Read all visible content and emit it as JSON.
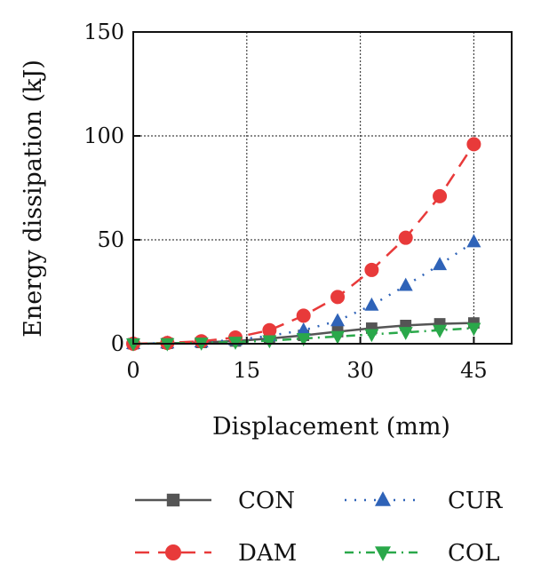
{
  "chart_data": {
    "type": "line",
    "xlabel": "Displacement (mm)",
    "ylabel": "Energy dissipation (kJ)",
    "xlim": [
      0,
      50
    ],
    "ylim": [
      0,
      150
    ],
    "xticks": [
      "0",
      "15",
      "30",
      "45"
    ],
    "yticks": [
      "0",
      "50",
      "100",
      "150"
    ],
    "grid": true,
    "legend_position": "bottom",
    "series": [
      {
        "name": "CON",
        "color": "#555555",
        "marker": "square",
        "line_style": "solid",
        "x": [
          0,
          4.5,
          9,
          13.5,
          18,
          22.5,
          27,
          31.5,
          36,
          40.5,
          45
        ],
        "y": [
          0,
          0.2,
          0.6,
          1.3,
          2.5,
          4.0,
          5.8,
          7.5,
          8.8,
          9.6,
          10.0
        ]
      },
      {
        "name": "CUR",
        "color": "#2f63b8",
        "marker": "triangle-up",
        "line_style": "dotted",
        "x": [
          0,
          4.5,
          9,
          13.5,
          18,
          22.5,
          27,
          31.5,
          36,
          40.5,
          45
        ],
        "y": [
          0,
          0.3,
          0.8,
          1.8,
          3.8,
          6.5,
          11.0,
          18.5,
          28.0,
          38.0,
          49.0
        ]
      },
      {
        "name": "DAM",
        "color": "#e83a3a",
        "marker": "circle",
        "line_style": "dashed",
        "x": [
          0,
          4.5,
          9,
          13.5,
          18,
          22.5,
          27,
          31.5,
          36,
          40.5,
          45
        ],
        "y": [
          0,
          0.4,
          1.2,
          3.0,
          6.5,
          13.5,
          22.5,
          35.5,
          51.0,
          71.0,
          96.0
        ]
      },
      {
        "name": "COL",
        "color": "#2aa84a",
        "marker": "triangle-down",
        "line_style": "dashdot",
        "x": [
          0,
          4.5,
          9,
          13.5,
          18,
          22.5,
          27,
          31.5,
          36,
          40.5,
          45
        ],
        "y": [
          0,
          0.1,
          0.4,
          0.8,
          1.5,
          2.5,
          3.5,
          4.5,
          5.5,
          6.5,
          7.5
        ]
      }
    ],
    "legend_order": [
      "CON",
      "CUR",
      "DAM",
      "COL"
    ]
  }
}
